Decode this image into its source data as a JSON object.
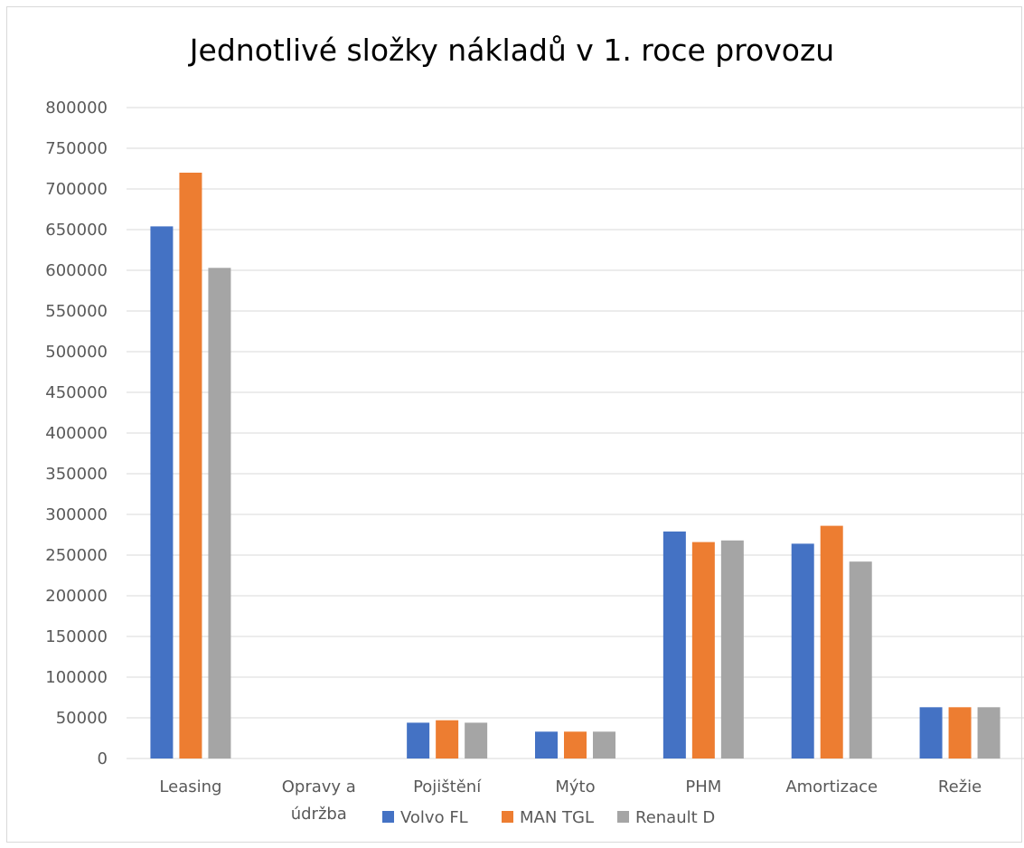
{
  "chart_data": {
    "type": "bar",
    "title": "Jednotlivé složky nákladů v 1. roce provozu",
    "categories": [
      "Leasing",
      "Opravy a údržba",
      "Pojištění",
      "Mýto",
      "PHM",
      "Amortizace",
      "Režie"
    ],
    "category_lines": [
      [
        "Leasing"
      ],
      [
        "Opravy a",
        "údržba"
      ],
      [
        "Pojištění"
      ],
      [
        "Mýto"
      ],
      [
        "PHM"
      ],
      [
        "Amortizace"
      ],
      [
        "Režie"
      ]
    ],
    "series": [
      {
        "name": "Volvo FL",
        "color": "#4472C4",
        "values": [
          654000,
          0,
          44000,
          33000,
          279000,
          264000,
          63000
        ]
      },
      {
        "name": "MAN TGL",
        "color": "#ED7D31",
        "values": [
          720000,
          0,
          47000,
          33000,
          266000,
          286000,
          63000
        ]
      },
      {
        "name": "Renault D",
        "color": "#A5A5A5",
        "values": [
          603000,
          0,
          44000,
          33000,
          268000,
          242000,
          63000
        ]
      }
    ],
    "ylim": [
      0,
      800000
    ],
    "ytick_step": 50000,
    "grid": true,
    "legend_position": "bottom"
  }
}
